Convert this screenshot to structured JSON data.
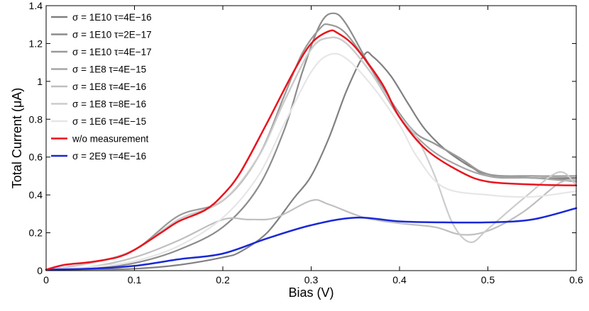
{
  "chart_data": {
    "type": "line",
    "title": "",
    "xlabel": "Bias (V)",
    "ylabel": "Total Current (μA)",
    "xlim": [
      0,
      0.6
    ],
    "ylim": [
      0,
      1.4
    ],
    "grid": false,
    "legend_position": "top-left",
    "x_ticks": [
      0,
      0.1,
      0.2,
      0.3,
      0.4,
      0.5,
      0.6
    ],
    "x_tick_labels": [
      "0",
      "0.1",
      "0.2",
      "0.3",
      "0.4",
      "0.5",
      "0.6"
    ],
    "y_ticks": [
      0,
      0.2,
      0.4,
      0.6,
      0.8,
      1.0,
      1.2,
      1.4
    ],
    "y_tick_labels": [
      "0",
      "0.2",
      "0.4",
      "0.6",
      "0.8",
      "1",
      "1.2",
      "1.4"
    ],
    "series": [
      {
        "name": "σ = 1E10 τ=4E−16",
        "color": "#808080",
        "points": [
          [
            0,
            0.005
          ],
          [
            0.05,
            0.007
          ],
          [
            0.1,
            0.01
          ],
          [
            0.15,
            0.03
          ],
          [
            0.2,
            0.07
          ],
          [
            0.22,
            0.1
          ],
          [
            0.25,
            0.2
          ],
          [
            0.28,
            0.38
          ],
          [
            0.3,
            0.5
          ],
          [
            0.32,
            0.7
          ],
          [
            0.34,
            0.95
          ],
          [
            0.36,
            1.14
          ],
          [
            0.37,
            1.13
          ],
          [
            0.39,
            1.03
          ],
          [
            0.41,
            0.88
          ],
          [
            0.43,
            0.74
          ],
          [
            0.46,
            0.61
          ],
          [
            0.5,
            0.51
          ],
          [
            0.55,
            0.49
          ],
          [
            0.6,
            0.49
          ]
        ]
      },
      {
        "name": "σ = 1E10 τ=2E−17",
        "color": "#8c8c8c",
        "points": [
          [
            0,
            0.005
          ],
          [
            0.05,
            0.01
          ],
          [
            0.1,
            0.04
          ],
          [
            0.15,
            0.11
          ],
          [
            0.2,
            0.23
          ],
          [
            0.24,
            0.44
          ],
          [
            0.27,
            0.75
          ],
          [
            0.29,
            1.05
          ],
          [
            0.31,
            1.3
          ],
          [
            0.325,
            1.36
          ],
          [
            0.34,
            1.3
          ],
          [
            0.37,
            1.05
          ],
          [
            0.4,
            0.83
          ],
          [
            0.42,
            0.72
          ],
          [
            0.44,
            0.67
          ],
          [
            0.47,
            0.59
          ],
          [
            0.5,
            0.5
          ],
          [
            0.55,
            0.49
          ],
          [
            0.6,
            0.48
          ]
        ]
      },
      {
        "name": "σ = 1E10 τ=4E−17",
        "color": "#999999",
        "points": [
          [
            0,
            0.005
          ],
          [
            0.05,
            0.04
          ],
          [
            0.1,
            0.11
          ],
          [
            0.15,
            0.29
          ],
          [
            0.2,
            0.37
          ],
          [
            0.24,
            0.6
          ],
          [
            0.27,
            0.93
          ],
          [
            0.29,
            1.15
          ],
          [
            0.31,
            1.28
          ],
          [
            0.32,
            1.3
          ],
          [
            0.34,
            1.25
          ],
          [
            0.37,
            1.05
          ],
          [
            0.4,
            0.82
          ],
          [
            0.42,
            0.72
          ],
          [
            0.44,
            0.67
          ],
          [
            0.47,
            0.59
          ],
          [
            0.5,
            0.51
          ],
          [
            0.55,
            0.5
          ],
          [
            0.6,
            0.5
          ]
        ]
      },
      {
        "name": "σ = 1E8 τ=4E−15",
        "color": "#a6a6a6",
        "points": [
          [
            0,
            0.005
          ],
          [
            0.05,
            0.04
          ],
          [
            0.1,
            0.11
          ],
          [
            0.15,
            0.27
          ],
          [
            0.2,
            0.37
          ],
          [
            0.24,
            0.6
          ],
          [
            0.27,
            0.9
          ],
          [
            0.3,
            1.17
          ],
          [
            0.32,
            1.23
          ],
          [
            0.34,
            1.2
          ],
          [
            0.37,
            1.03
          ],
          [
            0.4,
            0.81
          ],
          [
            0.43,
            0.66
          ],
          [
            0.46,
            0.57
          ],
          [
            0.5,
            0.5
          ],
          [
            0.55,
            0.49
          ],
          [
            0.6,
            0.47
          ]
        ]
      },
      {
        "name": "σ = 1E8 τ=4E−16",
        "color": "#bfbfbf",
        "points": [
          [
            0,
            0.005
          ],
          [
            0.05,
            0.02
          ],
          [
            0.1,
            0.07
          ],
          [
            0.15,
            0.16
          ],
          [
            0.2,
            0.27
          ],
          [
            0.23,
            0.27
          ],
          [
            0.26,
            0.28
          ],
          [
            0.3,
            0.37
          ],
          [
            0.32,
            0.35
          ],
          [
            0.36,
            0.28
          ],
          [
            0.4,
            0.25
          ],
          [
            0.44,
            0.23
          ],
          [
            0.47,
            0.19
          ],
          [
            0.5,
            0.21
          ],
          [
            0.54,
            0.31
          ],
          [
            0.58,
            0.46
          ],
          [
            0.6,
            0.48
          ]
        ]
      },
      {
        "name": "σ = 1E8 τ=8E−16",
        "color": "#cccccc",
        "points": [
          [
            0,
            0.005
          ],
          [
            0.05,
            0.04
          ],
          [
            0.1,
            0.11
          ],
          [
            0.15,
            0.27
          ],
          [
            0.2,
            0.37
          ],
          [
            0.24,
            0.6
          ],
          [
            0.27,
            0.9
          ],
          [
            0.3,
            1.17
          ],
          [
            0.32,
            1.23
          ],
          [
            0.34,
            1.2
          ],
          [
            0.37,
            1.03
          ],
          [
            0.4,
            0.82
          ],
          [
            0.42,
            0.7
          ],
          [
            0.44,
            0.5
          ],
          [
            0.46,
            0.25
          ],
          [
            0.48,
            0.15
          ],
          [
            0.5,
            0.22
          ],
          [
            0.54,
            0.38
          ],
          [
            0.58,
            0.52
          ],
          [
            0.6,
            0.45
          ]
        ]
      },
      {
        "name": "σ = 1E6 τ=4E−15",
        "color": "#e6e6e6",
        "points": [
          [
            0,
            0.005
          ],
          [
            0.05,
            0.02
          ],
          [
            0.1,
            0.05
          ],
          [
            0.15,
            0.13
          ],
          [
            0.2,
            0.28
          ],
          [
            0.24,
            0.5
          ],
          [
            0.27,
            0.78
          ],
          [
            0.3,
            1.05
          ],
          [
            0.32,
            1.14
          ],
          [
            0.34,
            1.12
          ],
          [
            0.37,
            0.97
          ],
          [
            0.4,
            0.77
          ],
          [
            0.42,
            0.6
          ],
          [
            0.45,
            0.44
          ],
          [
            0.5,
            0.4
          ],
          [
            0.55,
            0.39
          ],
          [
            0.6,
            0.42
          ]
        ]
      },
      {
        "name": "w/o measurement",
        "color": "#e8141e",
        "points": [
          [
            0,
            0.005
          ],
          [
            0.02,
            0.03
          ],
          [
            0.05,
            0.045
          ],
          [
            0.08,
            0.07
          ],
          [
            0.1,
            0.11
          ],
          [
            0.13,
            0.2
          ],
          [
            0.15,
            0.26
          ],
          [
            0.18,
            0.32
          ],
          [
            0.2,
            0.4
          ],
          [
            0.22,
            0.52
          ],
          [
            0.25,
            0.78
          ],
          [
            0.28,
            1.05
          ],
          [
            0.3,
            1.2
          ],
          [
            0.32,
            1.265
          ],
          [
            0.33,
            1.255
          ],
          [
            0.35,
            1.18
          ],
          [
            0.38,
            0.99
          ],
          [
            0.4,
            0.81
          ],
          [
            0.43,
            0.64
          ],
          [
            0.47,
            0.52
          ],
          [
            0.5,
            0.47
          ],
          [
            0.55,
            0.455
          ],
          [
            0.6,
            0.45
          ]
        ]
      },
      {
        "name": "σ = 2E9 τ=4E−16",
        "color": "#1a28d6",
        "points": [
          [
            0,
            0.005
          ],
          [
            0.05,
            0.01
          ],
          [
            0.1,
            0.025
          ],
          [
            0.15,
            0.06
          ],
          [
            0.2,
            0.09
          ],
          [
            0.25,
            0.17
          ],
          [
            0.3,
            0.24
          ],
          [
            0.35,
            0.28
          ],
          [
            0.4,
            0.26
          ],
          [
            0.45,
            0.255
          ],
          [
            0.5,
            0.255
          ],
          [
            0.55,
            0.27
          ],
          [
            0.6,
            0.33
          ]
        ]
      }
    ]
  }
}
